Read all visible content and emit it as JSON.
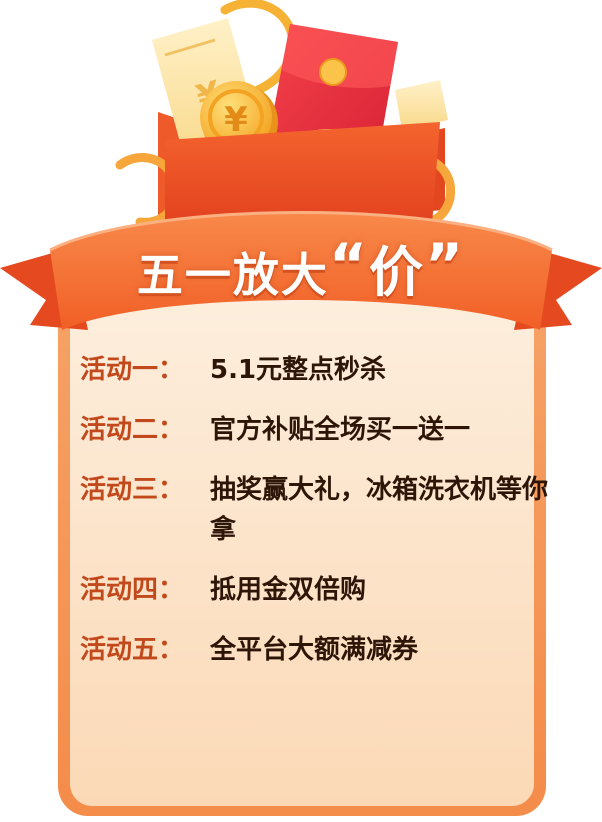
{
  "title": {
    "prefix": "五一放大",
    "open_quote": "“",
    "main": "价",
    "close_quote": "”"
  },
  "activities": [
    {
      "label": "活动一：",
      "text": "5.1元整点秒杀"
    },
    {
      "label": "活动二：",
      "text": "官方补贴全场买一送一"
    },
    {
      "label": "活动三：",
      "text": "抽奖赢大礼，冰箱洗衣机等你拿"
    },
    {
      "label": "活动四：",
      "text": "抵用金双倍购"
    },
    {
      "label": "活动五：",
      "text": "全平台大额满减券"
    }
  ],
  "coin_symbol": "¥",
  "icons": [
    "gift-box-icon",
    "red-envelope-icon",
    "coin-icon",
    "coupon-ticket-icon",
    "ribbon-banner-icon"
  ],
  "colors": {
    "accent": "#f06a2c",
    "label": "#c2491b",
    "text": "#2d1508",
    "card": "#fde3c8",
    "red_envelope": "#e72b3a",
    "coin": "#f7b42c"
  }
}
